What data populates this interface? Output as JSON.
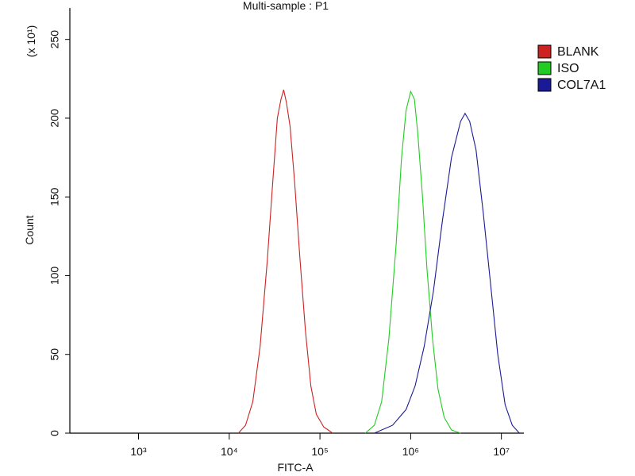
{
  "chart_data": {
    "type": "line",
    "title": "Multi-sample : P1",
    "x_label": "FITC-A",
    "y_label": "Count",
    "y_multiplier": "(x 10¹)",
    "xscale": "log",
    "xlim": [
      175,
      17700000
    ],
    "xticks": [
      {
        "value": 1000,
        "label": "10³"
      },
      {
        "value": 10000,
        "label": "10⁴"
      },
      {
        "value": 100000,
        "label": "10⁵"
      },
      {
        "value": 1000000,
        "label": "10⁶"
      },
      {
        "value": 10000000,
        "label": "10⁷"
      }
    ],
    "ylim": [
      0,
      270
    ],
    "yticks": [
      0,
      50,
      100,
      150,
      200,
      250
    ],
    "legend": "right",
    "series": [
      {
        "name": "BLANK",
        "color": "#cc2222",
        "x": [
          12600,
          15100,
          18200,
          21900,
          26300,
          30200,
          33900,
          37200,
          39800,
          42700,
          46800,
          52500,
          60300,
          69200,
          79400,
          91200,
          110000,
          138000
        ],
        "values": [
          0,
          5,
          20,
          55,
          110,
          160,
          200,
          212,
          218,
          210,
          195,
          160,
          110,
          65,
          30,
          12,
          4,
          0
        ]
      },
      {
        "name": "ISO",
        "color": "#22cc22",
        "x": [
          316000,
          398000,
          479000,
          575000,
          692000,
          794000,
          891000,
          1000000,
          1100000,
          1200000,
          1350000,
          1510000,
          1740000,
          2000000,
          2340000,
          2820000,
          3550000
        ],
        "values": [
          0,
          5,
          20,
          60,
          120,
          175,
          205,
          217,
          212,
          190,
          150,
          105,
          60,
          28,
          10,
          2,
          0
        ]
      },
      {
        "name": "COL7A1",
        "color": "#1a1a99",
        "x": [
          398000,
          631000,
          891000,
          1120000,
          1410000,
          1780000,
          2240000,
          2820000,
          3550000,
          3980000,
          4470000,
          5250000,
          6310000,
          7590000,
          9120000,
          11000000,
          13200000,
          15800000
        ],
        "values": [
          0,
          5,
          15,
          30,
          55,
          90,
          135,
          175,
          198,
          203,
          198,
          180,
          140,
          95,
          50,
          18,
          5,
          0
        ]
      }
    ]
  }
}
